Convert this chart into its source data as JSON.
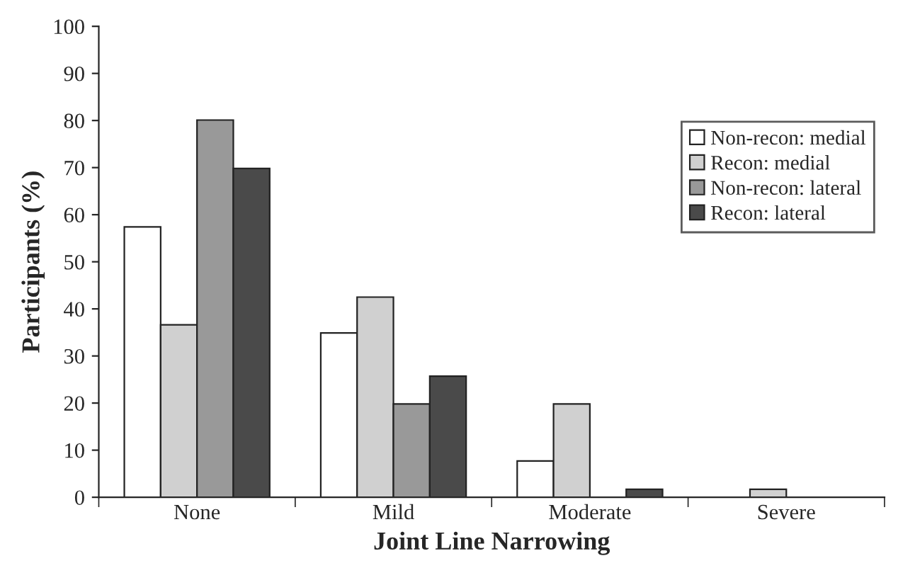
{
  "chart_data": {
    "type": "bar",
    "xlabel": "Joint Line Narrowing",
    "ylabel": "Participants (%)",
    "categories": [
      "None",
      "Mild",
      "Moderate",
      "Severe"
    ],
    "series": [
      {
        "name": "Non-recon: medial",
        "color": "#ffffff",
        "values": [
          57.4,
          34.9,
          7.7,
          null
        ]
      },
      {
        "name": "Recon: medial",
        "color": "#d0d0d0",
        "values": [
          36.6,
          42.5,
          19.8,
          1.7
        ]
      },
      {
        "name": "Non-recon: lateral",
        "color": "#999999",
        "values": [
          80.1,
          19.8,
          null,
          null
        ]
      },
      {
        "name": "Recon: lateral",
        "color": "#4a4a4a",
        "values": [
          69.8,
          25.7,
          1.7,
          null
        ]
      }
    ],
    "ylim": [
      0,
      100
    ],
    "yticks": [
      0,
      10,
      20,
      30,
      40,
      50,
      60,
      70,
      80,
      90,
      100
    ],
    "grid": false,
    "legend": "right"
  }
}
